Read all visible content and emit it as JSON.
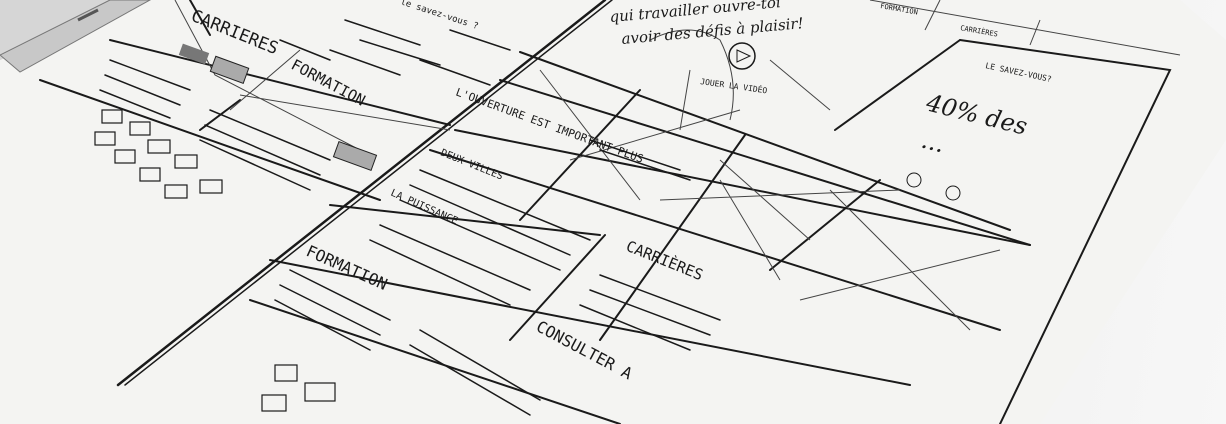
{
  "sketch": {
    "left_panel": {
      "heading_careers": "CARRIERES",
      "heading_formation": "FORMATION",
      "top_caption": "le savez-vous ?"
    },
    "hero": {
      "quote_line1": "qui travailler ouvre-toi",
      "quote_line2": "avoir des défis à plaisir!",
      "video_label": "JOUER LA VIDÉO"
    },
    "nav": {
      "item_formation": "FORMATION",
      "item_carrieres": "CARRIÈRES"
    },
    "fact_box": {
      "label": "LE SAVEZ-VOUS?",
      "stat_line1": "40% des",
      "stat_line2": "..."
    },
    "tiles": {
      "tile_intro": "L'OUVERTURE EST IMPORTANT PLUS",
      "deux_villes": "DEUX VILLES",
      "la_puissance": "LA PUISSANCE",
      "formation": "FORMATION",
      "carrieres": "CARRIÈRES",
      "consulter": "CONSULTER A"
    }
  }
}
